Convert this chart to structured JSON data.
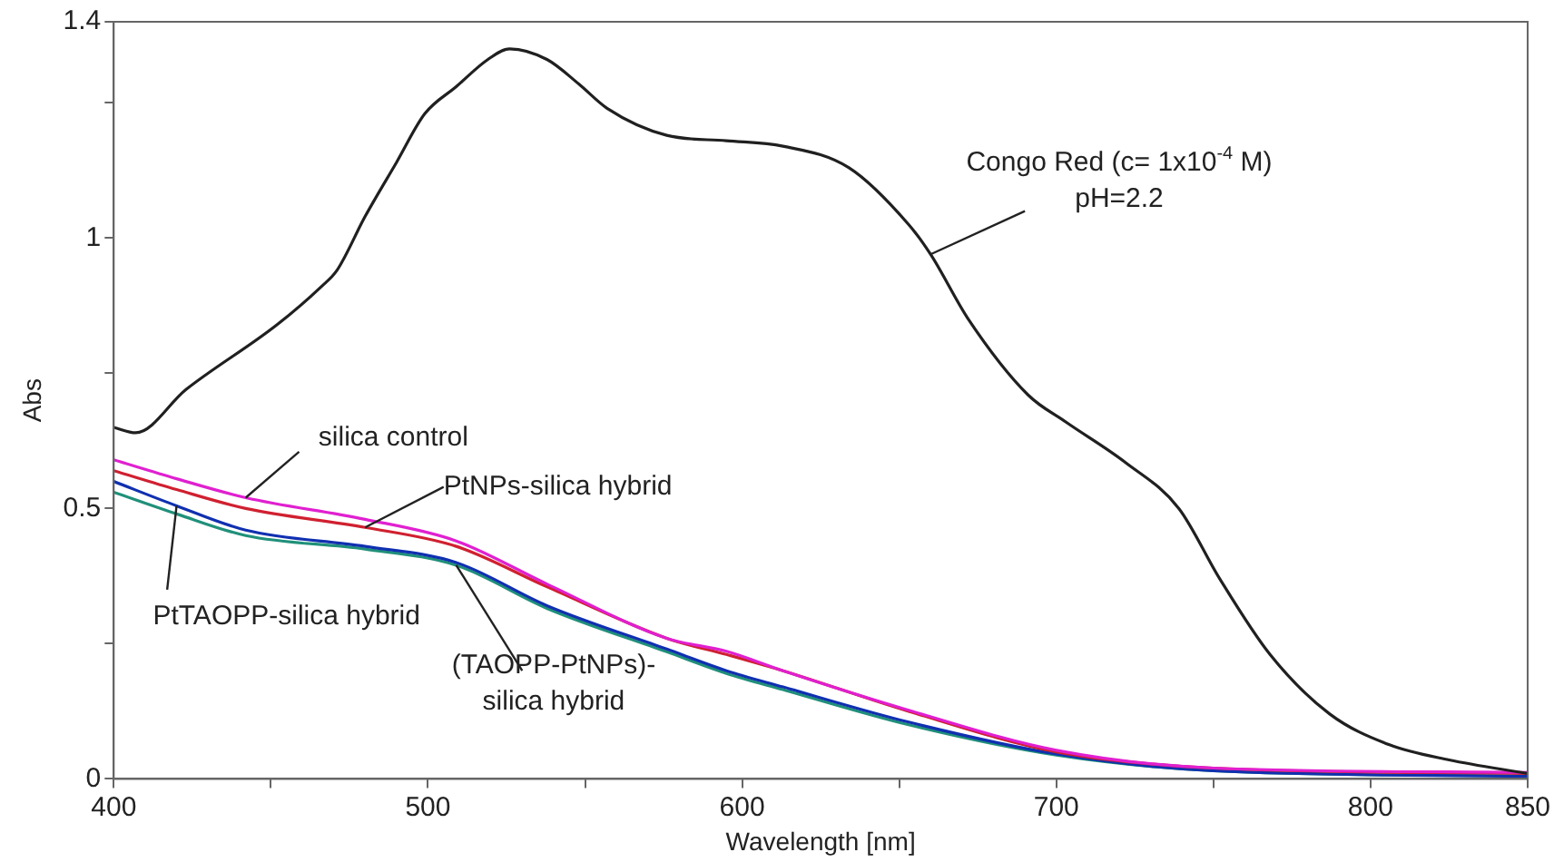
{
  "chart_data": {
    "type": "line",
    "xlabel": "Wavelength [nm]",
    "ylabel": "Abs",
    "xlim": [
      400,
      850
    ],
    "ylim": [
      0,
      1.4
    ],
    "xticks": [
      400,
      {
        "value": 450,
        "label": null
      },
      500,
      {
        "value": 550,
        "label": null
      },
      600,
      {
        "value": 650,
        "label": null
      },
      700,
      {
        "value": 750,
        "label": null
      },
      800,
      850
    ],
    "yticks": [
      0,
      {
        "value": 0.25,
        "label": null
      },
      0.5,
      {
        "value": 0.75,
        "label": null
      },
      1,
      {
        "value": 1.25,
        "label": null
      },
      1.4
    ],
    "grid": false,
    "legend": false,
    "marker": "none",
    "line_style": "solid",
    "series": [
      {
        "name": "Congo Red (c= 1x10$^{-4}$ M)\npH=2.2",
        "color": "#202020",
        "x": [
          400,
          407,
          423,
          452,
          466,
          471,
          480,
          490,
          499,
          509,
          519,
          526,
          538,
          548,
          557,
          576,
          595,
          613,
          634,
          653,
          660,
          672,
          691,
          703,
          722,
          739,
          752,
          768,
          787,
          806,
          825,
          850
        ],
        "values": [
          0.65,
          0.64,
          0.72,
          0.84,
          0.91,
          0.94,
          1.04,
          1.14,
          1.23,
          1.28,
          1.33,
          1.35,
          1.33,
          1.285,
          1.24,
          1.19,
          1.18,
          1.17,
          1.13,
          1.025,
          0.97,
          0.85,
          0.71,
          0.66,
          0.585,
          0.5,
          0.37,
          0.23,
          0.12,
          0.063,
          0.035,
          0.01
        ]
      },
      {
        "name": "silica control",
        "color": "#e020d0",
        "x": [
          400,
          420,
          442,
          480,
          509,
          538,
          576,
          595,
          613,
          653,
          700,
          750,
          850
        ],
        "values": [
          0.59,
          0.555,
          0.52,
          0.48,
          0.44,
          0.36,
          0.26,
          0.236,
          0.2,
          0.127,
          0.053,
          0.02,
          0.012
        ]
      },
      {
        "name": "PtNPs-silica hybrid",
        "color": "#d02030",
        "x": [
          400,
          420,
          442,
          480,
          509,
          538,
          576,
          595,
          613,
          653,
          700,
          750,
          850
        ],
        "values": [
          0.57,
          0.535,
          0.5,
          0.465,
          0.43,
          0.355,
          0.26,
          0.23,
          0.2,
          0.125,
          0.05,
          0.02,
          0.01
        ]
      },
      {
        "name": "PtTAOPP-silica hybrid",
        "color": "#1030b0",
        "x": [
          400,
          420,
          442,
          480,
          509,
          538,
          576,
          595,
          613,
          653,
          700,
          750,
          850
        ],
        "values": [
          0.55,
          0.505,
          0.46,
          0.43,
          0.4,
          0.32,
          0.24,
          0.2,
          0.17,
          0.105,
          0.046,
          0.015,
          0.005
        ]
      },
      {
        "name": "(TAOPP-PtNPs)-\nsilica hybrid",
        "color": "#20907a",
        "x": [
          400,
          420,
          442,
          480,
          509,
          538,
          576,
          595,
          613,
          653,
          700,
          750,
          850
        ],
        "values": [
          0.53,
          0.49,
          0.45,
          0.425,
          0.395,
          0.315,
          0.235,
          0.195,
          0.165,
          0.1,
          0.044,
          0.015,
          0.005
        ]
      }
    ]
  }
}
